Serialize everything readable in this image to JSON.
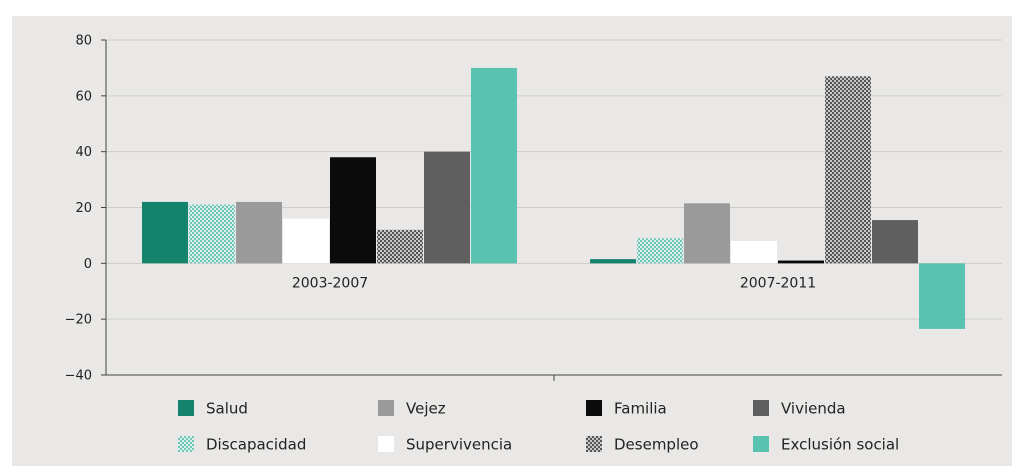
{
  "chart_data": {
    "type": "bar",
    "categories": [
      "2003-2007",
      "2007-2011"
    ],
    "series": [
      {
        "name": "Salud",
        "values": [
          22,
          1.5
        ],
        "color": "#13836c",
        "pattern": "solid"
      },
      {
        "name": "Discapacidad",
        "values": [
          21,
          9
        ],
        "color": "#7fcfc0",
        "pattern": "dots"
      },
      {
        "name": "Vejez",
        "values": [
          22,
          21.5
        ],
        "color": "#9a9a9a",
        "pattern": "solid"
      },
      {
        "name": "Supervivencia",
        "values": [
          16,
          8
        ],
        "color": "#ffffff",
        "pattern": "solid"
      },
      {
        "name": "Familia",
        "values": [
          38,
          1
        ],
        "color": "#0b0b0b",
        "pattern": "solid"
      },
      {
        "name": "Desempleo",
        "values": [
          12,
          67
        ],
        "color": "#6a6a6a",
        "pattern": "checker"
      },
      {
        "name": "Vivienda",
        "values": [
          40,
          15.5
        ],
        "color": "#5f5f5f",
        "pattern": "solid"
      },
      {
        "name": "Exclusión social",
        "values": [
          70,
          -23.5
        ],
        "color": "#5ac2b0",
        "pattern": "solid"
      }
    ],
    "legend_order": [
      "Salud",
      "Vejez",
      "Familia",
      "Vivienda",
      "Discapacidad",
      "Supervivencia",
      "Desempleo",
      "Exclusión social"
    ],
    "yticks": [
      80,
      60,
      40,
      20,
      0,
      -20,
      -40
    ],
    "ylim": [
      -40,
      80
    ],
    "title": "",
    "xlabel": "",
    "ylabel": "",
    "grid": true,
    "legend_position": "bottom"
  }
}
